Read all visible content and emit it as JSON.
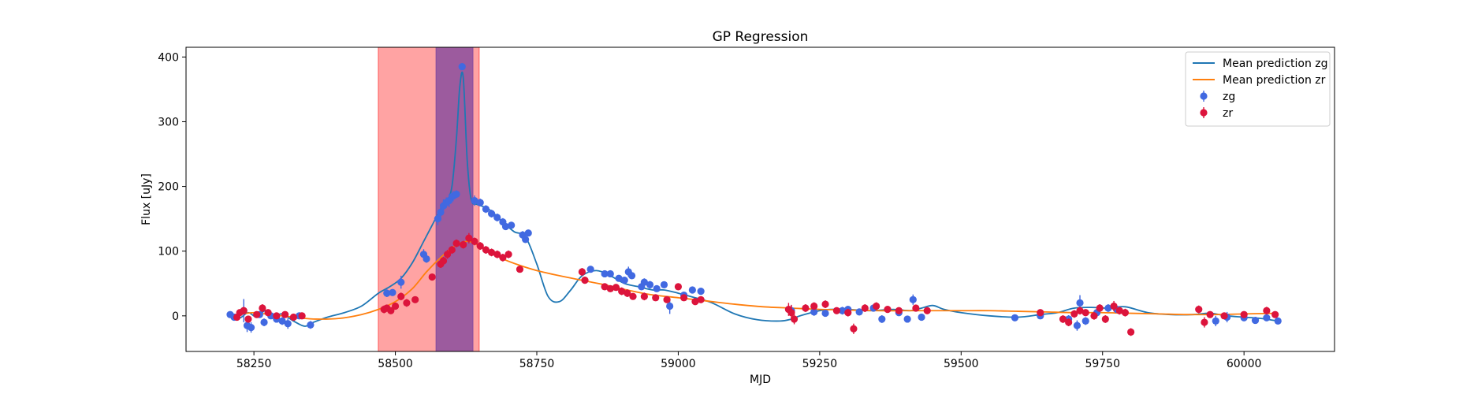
{
  "chart_data": {
    "type": "scatter",
    "title": "GP Regression",
    "xlabel": "MJD",
    "ylabel": "Flux [uJy]",
    "xlim": [
      58130,
      60160
    ],
    "ylim": [
      -55,
      415
    ],
    "xticks": [
      58250,
      58500,
      58750,
      59000,
      59250,
      59500,
      59750,
      60000
    ],
    "yticks": [
      0,
      100,
      200,
      300,
      400
    ],
    "legend_position": "upper right",
    "colors": {
      "zg_points": "#4169e1",
      "zr_points": "#dc143c",
      "zg_line": "#1f77b4",
      "zr_line": "#ff7f0e",
      "span_red": "#ff6666",
      "span_purple": "#8b4f9e"
    },
    "shaded_regions": [
      {
        "x0": 58470,
        "x1": 58648,
        "color": "#ff6666",
        "alpha": 0.6
      },
      {
        "x0": 58572,
        "x1": 58637,
        "color": "#8b4f9e",
        "alpha": 0.85
      }
    ],
    "legend": [
      {
        "label": "Mean prediction zg",
        "kind": "line",
        "color": "#1f77b4"
      },
      {
        "label": "Mean prediction zr",
        "kind": "line",
        "color": "#ff7f0e"
      },
      {
        "label": "zg",
        "kind": "errorpoint",
        "color": "#4169e1"
      },
      {
        "label": "zr",
        "kind": "errorpoint",
        "color": "#dc143c"
      }
    ],
    "series_lines": [
      {
        "name": "Mean prediction zg",
        "color": "#1f77b4",
        "x": [
          58210,
          58225,
          58240,
          58255,
          58270,
          58285,
          58300,
          58320,
          58340,
          58355,
          58380,
          58410,
          58440,
          58470,
          58490,
          58510,
          58530,
          58550,
          58565,
          58580,
          58590,
          58600,
          58608,
          58614,
          58620,
          58627,
          58634,
          58645,
          58665,
          58690,
          58710,
          58730,
          58750,
          58770,
          58790,
          58810,
          58830,
          58855,
          58880,
          58905,
          58930,
          58955,
          58975,
          59000,
          59030,
          59060,
          59100,
          59140,
          59180,
          59200,
          59215,
          59250,
          59270,
          59300,
          59340,
          59380,
          59410,
          59430,
          59450,
          59470,
          59500,
          59550,
          59600,
          59640,
          59670,
          59700,
          59730,
          59760,
          59790,
          59830,
          59870,
          59910,
          59940,
          59970,
          60000,
          60030,
          60060
        ],
        "y": [
          2,
          -3,
          5,
          -2,
          8,
          -1,
          3,
          -8,
          -16,
          -10,
          -2,
          5,
          15,
          35,
          45,
          58,
          82,
          115,
          140,
          165,
          175,
          200,
          275,
          355,
          368,
          240,
          180,
          172,
          165,
          145,
          130,
          122,
          80,
          30,
          22,
          40,
          62,
          70,
          62,
          50,
          45,
          40,
          40,
          35,
          28,
          20,
          3,
          -6,
          -8,
          -5,
          0,
          8,
          10,
          10,
          8,
          10,
          8,
          12,
          16,
          10,
          5,
          0,
          -2,
          2,
          5,
          12,
          13,
          12,
          14,
          5,
          2,
          2,
          4,
          0,
          -2,
          -4,
          -8
        ]
      },
      {
        "name": "Mean prediction zr",
        "color": "#ff7f0e",
        "x": [
          58210,
          58230,
          58250,
          58270,
          58300,
          58330,
          58360,
          58400,
          58440,
          58470,
          58500,
          58530,
          58555,
          58580,
          58605,
          58630,
          58660,
          58690,
          58720,
          58750,
          58790,
          58830,
          58870,
          58910,
          58950,
          59000,
          59050,
          59100,
          59150,
          59200,
          59250,
          59300,
          59350,
          59400,
          59450,
          59500,
          59550,
          59600,
          59650,
          59700,
          59750,
          59800,
          59850,
          59900,
          59950,
          60000,
          60060
        ],
        "y": [
          0,
          3,
          5,
          3,
          0,
          -3,
          -5,
          -4,
          2,
          10,
          22,
          42,
          68,
          90,
          108,
          115,
          102,
          88,
          78,
          70,
          62,
          55,
          48,
          40,
          33,
          28,
          23,
          18,
          14,
          12,
          10,
          9,
          8,
          8,
          8,
          8,
          8,
          7,
          6,
          5,
          5,
          4,
          3,
          2,
          2,
          3,
          4
        ]
      }
    ],
    "series": [
      {
        "name": "zg",
        "color": "#4169e1",
        "points": [
          [
            58208,
            2,
            3
          ],
          [
            58215,
            -2,
            4
          ],
          [
            58232,
            8,
            18
          ],
          [
            58238,
            -15,
            10
          ],
          [
            58245,
            -18,
            8
          ],
          [
            58260,
            2,
            5
          ],
          [
            58268,
            -10,
            6
          ],
          [
            58280,
            0,
            5
          ],
          [
            58290,
            -5,
            4
          ],
          [
            58300,
            -8,
            6
          ],
          [
            58310,
            -12,
            8
          ],
          [
            58330,
            0,
            3
          ],
          [
            58350,
            -14,
            6
          ],
          [
            58485,
            35,
            6
          ],
          [
            58495,
            36,
            5
          ],
          [
            58510,
            52,
            10
          ],
          [
            58550,
            95,
            8
          ],
          [
            58555,
            88,
            6
          ],
          [
            58575,
            150,
            10
          ],
          [
            58580,
            160,
            12
          ],
          [
            58585,
            170,
            10
          ],
          [
            58590,
            175,
            8
          ],
          [
            58595,
            178,
            10
          ],
          [
            58602,
            185,
            8
          ],
          [
            58608,
            188,
            6
          ],
          [
            58618,
            385,
            4
          ],
          [
            58640,
            178,
            8
          ],
          [
            58650,
            175,
            6
          ],
          [
            58660,
            165,
            6
          ],
          [
            58670,
            158,
            6
          ],
          [
            58680,
            152,
            6
          ],
          [
            58690,
            145,
            6
          ],
          [
            58695,
            138,
            5
          ],
          [
            58705,
            140,
            5
          ],
          [
            58725,
            125,
            6
          ],
          [
            58730,
            118,
            5
          ],
          [
            58735,
            128,
            4
          ],
          [
            58845,
            72,
            4
          ],
          [
            58870,
            65,
            4
          ],
          [
            58880,
            65,
            3
          ],
          [
            58895,
            58,
            5
          ],
          [
            58905,
            55,
            5
          ],
          [
            58912,
            68,
            8
          ],
          [
            58918,
            62,
            5
          ],
          [
            58935,
            45,
            5
          ],
          [
            58940,
            52,
            6
          ],
          [
            58950,
            48,
            6
          ],
          [
            58962,
            42,
            5
          ],
          [
            58975,
            48,
            5
          ],
          [
            58985,
            15,
            12
          ],
          [
            59010,
            32,
            5
          ],
          [
            59025,
            40,
            5
          ],
          [
            59040,
            38,
            5
          ],
          [
            59200,
            8,
            8
          ],
          [
            59240,
            6,
            6
          ],
          [
            59260,
            4,
            5
          ],
          [
            59290,
            8,
            6
          ],
          [
            59300,
            10,
            5
          ],
          [
            59320,
            6,
            5
          ],
          [
            59345,
            12,
            4
          ],
          [
            59360,
            -5,
            6
          ],
          [
            59390,
            5,
            4
          ],
          [
            59405,
            -5,
            5
          ],
          [
            59415,
            25,
            8
          ],
          [
            59430,
            -2,
            5
          ],
          [
            59595,
            -3,
            4
          ],
          [
            59640,
            0,
            5
          ],
          [
            59690,
            -5,
            6
          ],
          [
            59705,
            -15,
            8
          ],
          [
            59710,
            20,
            12
          ],
          [
            59720,
            -8,
            6
          ],
          [
            59740,
            5,
            5
          ],
          [
            59760,
            12,
            6
          ],
          [
            59775,
            10,
            5
          ],
          [
            59950,
            -8,
            8
          ],
          [
            59970,
            -2,
            8
          ],
          [
            60000,
            -3,
            4
          ],
          [
            60020,
            -7,
            5
          ],
          [
            60040,
            -3,
            4
          ],
          [
            60060,
            -8,
            5
          ]
        ]
      },
      {
        "name": "zr",
        "color": "#dc143c",
        "points": [
          [
            58220,
            -2,
            4
          ],
          [
            58225,
            5,
            5
          ],
          [
            58232,
            8,
            6
          ],
          [
            58240,
            -5,
            5
          ],
          [
            58255,
            2,
            5
          ],
          [
            58265,
            12,
            6
          ],
          [
            58275,
            5,
            5
          ],
          [
            58290,
            0,
            5
          ],
          [
            58305,
            2,
            5
          ],
          [
            58320,
            -2,
            4
          ],
          [
            58335,
            0,
            3
          ],
          [
            58480,
            10,
            6
          ],
          [
            58485,
            12,
            5
          ],
          [
            58492,
            8,
            5
          ],
          [
            58500,
            15,
            5
          ],
          [
            58510,
            30,
            6
          ],
          [
            58520,
            20,
            6
          ],
          [
            58535,
            25,
            5
          ],
          [
            58565,
            60,
            5
          ],
          [
            58580,
            80,
            6
          ],
          [
            58585,
            85,
            6
          ],
          [
            58592,
            95,
            7
          ],
          [
            58600,
            102,
            6
          ],
          [
            58608,
            112,
            6
          ],
          [
            58620,
            110,
            6
          ],
          [
            58630,
            120,
            8
          ],
          [
            58640,
            115,
            6
          ],
          [
            58650,
            108,
            6
          ],
          [
            58660,
            102,
            6
          ],
          [
            58670,
            98,
            6
          ],
          [
            58680,
            95,
            6
          ],
          [
            58690,
            90,
            6
          ],
          [
            58700,
            95,
            6
          ],
          [
            58720,
            72,
            5
          ],
          [
            58830,
            68,
            6
          ],
          [
            58835,
            55,
            5
          ],
          [
            58870,
            45,
            5
          ],
          [
            58880,
            42,
            5
          ],
          [
            58890,
            44,
            5
          ],
          [
            58900,
            38,
            6
          ],
          [
            58910,
            35,
            6
          ],
          [
            58920,
            30,
            5
          ],
          [
            58940,
            30,
            6
          ],
          [
            58960,
            28,
            5
          ],
          [
            58980,
            25,
            5
          ],
          [
            59000,
            45,
            5
          ],
          [
            59010,
            28,
            5
          ],
          [
            59030,
            22,
            5
          ],
          [
            59040,
            25,
            5
          ],
          [
            59195,
            10,
            10
          ],
          [
            59200,
            5,
            12
          ],
          [
            59205,
            -5,
            8
          ],
          [
            59225,
            12,
            6
          ],
          [
            59240,
            15,
            6
          ],
          [
            59260,
            18,
            6
          ],
          [
            59280,
            8,
            5
          ],
          [
            59300,
            5,
            6
          ],
          [
            59310,
            -20,
            8
          ],
          [
            59330,
            12,
            6
          ],
          [
            59350,
            15,
            6
          ],
          [
            59370,
            10,
            5
          ],
          [
            59390,
            8,
            5
          ],
          [
            59420,
            12,
            5
          ],
          [
            59440,
            8,
            5
          ],
          [
            59640,
            5,
            5
          ],
          [
            59680,
            -5,
            6
          ],
          [
            59690,
            -10,
            6
          ],
          [
            59700,
            3,
            6
          ],
          [
            59710,
            8,
            6
          ],
          [
            59720,
            5,
            5
          ],
          [
            59735,
            0,
            6
          ],
          [
            59745,
            12,
            6
          ],
          [
            59755,
            -5,
            6
          ],
          [
            59770,
            15,
            8
          ],
          [
            59780,
            8,
            6
          ],
          [
            59790,
            5,
            6
          ],
          [
            59800,
            -25,
            6
          ],
          [
            59920,
            10,
            6
          ],
          [
            59930,
            -10,
            8
          ],
          [
            59940,
            2,
            5
          ],
          [
            59965,
            0,
            5
          ],
          [
            60000,
            2,
            5
          ],
          [
            60040,
            8,
            6
          ],
          [
            60055,
            2,
            5
          ]
        ]
      }
    ]
  }
}
